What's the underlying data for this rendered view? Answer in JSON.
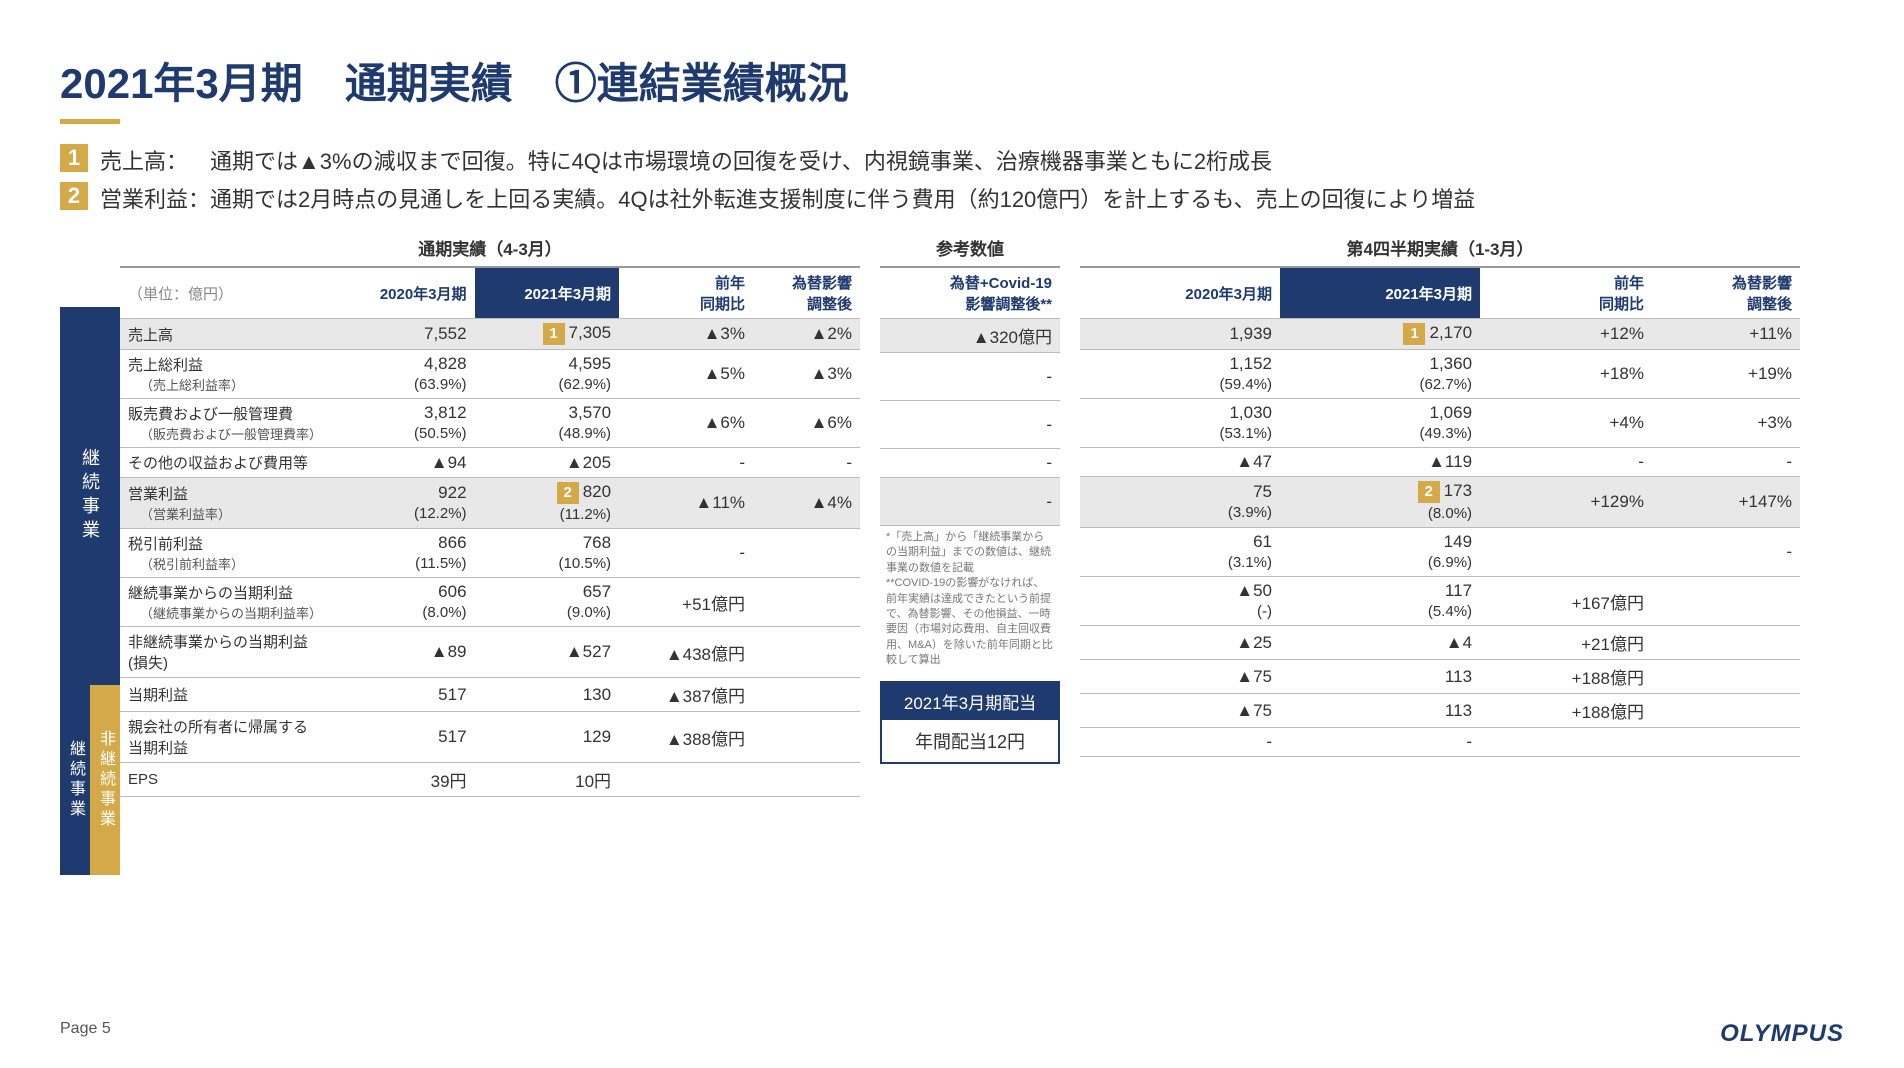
{
  "title": "2021年3月期　通期実績　①連結業績概況",
  "bullets": [
    {
      "num": "1",
      "label": "売上高：",
      "text": "通期では▲3%の減収まで回復。特に4Qは市場環境の回復を受け、内視鏡事業、治療機器事業ともに2桁成長"
    },
    {
      "num": "2",
      "label": "営業利益：",
      "text": "通期では2月時点の見通しを上回る実績。4Qは社外転進支援制度に伴う費用（約120億円）を計上するも、売上の回復により増益"
    }
  ],
  "side": {
    "top": "継続事業",
    "bottomLeft": "継続事業",
    "bottomRight": "非継続事業"
  },
  "groups": {
    "left": "通期実績（4-3月）",
    "mid": "参考数値",
    "right": "第4四半期実績（1-3月）"
  },
  "unit": "（単位：億円）",
  "cols": {
    "left": [
      "2020年3月期",
      "2021年3月期",
      "前年\n同期比",
      "為替影響\n調整後"
    ],
    "mid": [
      "為替+Covid-19\n影響調整後**"
    ],
    "right": [
      "2020年3月期",
      "2021年3月期",
      "前年\n同期比",
      "為替影響\n調整後"
    ]
  },
  "rows": [
    {
      "name": "売上高",
      "sub": "",
      "hl": true,
      "badge": "1",
      "l": [
        "7,552",
        "7,305",
        "▲3%",
        "▲2%"
      ],
      "m": [
        "▲320億円"
      ],
      "r": [
        "1,939",
        "2,170",
        "+12%",
        "+11%"
      ]
    },
    {
      "name": "売上総利益",
      "sub": "（売上総利益率）",
      "l": [
        "4,828\n(63.9%)",
        "4,595\n(62.9%)",
        "▲5%",
        "▲3%"
      ],
      "m": [
        "-"
      ],
      "r": [
        "1,152\n(59.4%)",
        "1,360\n(62.7%)",
        "+18%",
        "+19%"
      ]
    },
    {
      "name": "販売費および一般管理費",
      "sub": "（販売費および一般管理費率）",
      "l": [
        "3,812\n(50.5%)",
        "3,570\n(48.9%)",
        "▲6%",
        "▲6%"
      ],
      "m": [
        "-"
      ],
      "r": [
        "1,030\n(53.1%)",
        "1,069\n(49.3%)",
        "+4%",
        "+3%"
      ]
    },
    {
      "name": "その他の収益および費用等",
      "sub": "",
      "l": [
        "▲94",
        "▲205",
        "-",
        "-"
      ],
      "m": [
        "-"
      ],
      "r": [
        "▲47",
        "▲119",
        "-",
        "-"
      ]
    },
    {
      "name": "営業利益",
      "sub": "（営業利益率）",
      "hl": true,
      "badge": "2",
      "l": [
        "922\n(12.2%)",
        "820\n(11.2%)",
        "▲11%",
        "▲4%"
      ],
      "m": [
        "-"
      ],
      "r": [
        "75\n(3.9%)",
        "173\n(8.0%)",
        "+129%",
        "+147%"
      ]
    },
    {
      "name": "税引前利益",
      "sub": "（税引前利益率）",
      "l": [
        "866\n(11.5%)",
        "768\n(10.5%)",
        "-",
        ""
      ],
      "m": [
        ""
      ],
      "r": [
        "61\n(3.1%)",
        "149\n(6.9%)",
        "",
        "-"
      ]
    },
    {
      "name": "継続事業からの当期利益",
      "sub": "（継続事業からの当期利益率）",
      "l": [
        "606\n(8.0%)",
        "657\n(9.0%)",
        "+51億円",
        ""
      ],
      "m": [
        ""
      ],
      "r": [
        "▲50\n(-)",
        "117\n(5.4%)",
        "+167億円",
        ""
      ]
    },
    {
      "name": "非継続事業からの当期利益 (損失)",
      "sub": "",
      "l": [
        "▲89",
        "▲527",
        "▲438億円",
        ""
      ],
      "m": [
        ""
      ],
      "r": [
        "▲25",
        "▲4",
        "+21億円",
        ""
      ]
    },
    {
      "name": "当期利益",
      "sub": "",
      "l": [
        "517",
        "130",
        "▲387億円",
        ""
      ],
      "m": [
        ""
      ],
      "r": [
        "▲75",
        "113",
        "+188億円",
        ""
      ]
    },
    {
      "name": "親会社の所有者に帰属する当期利益",
      "sub": "",
      "l": [
        "517",
        "129",
        "▲388億円",
        ""
      ],
      "m": [
        ""
      ],
      "r": [
        "▲75",
        "113",
        "+188億円",
        ""
      ]
    },
    {
      "name": "EPS",
      "sub": "",
      "l": [
        "39円",
        "10円",
        "",
        ""
      ],
      "m": [
        ""
      ],
      "r": [
        "-",
        "-",
        "",
        ""
      ]
    }
  ],
  "footnote": "*「売上高」から「継続事業からの当期利益」までの数値は、継続事業の数値を記載\n**COVID-19の影響がなければ、前年実績は達成できたという前提で、為替影響、その他損益、一時要因（市場対応費用、自主回収費用、M&A）を除いた前年同期と比較して算出",
  "dividend": {
    "hdr": "2021年3月期配当",
    "val": "年間配当12円"
  },
  "page": "Page 5",
  "logo": "OLYMPUS",
  "colors": {
    "navy": "#1e3a6e",
    "gold": "#d4a947",
    "rowhl": "#e8e8e8"
  }
}
